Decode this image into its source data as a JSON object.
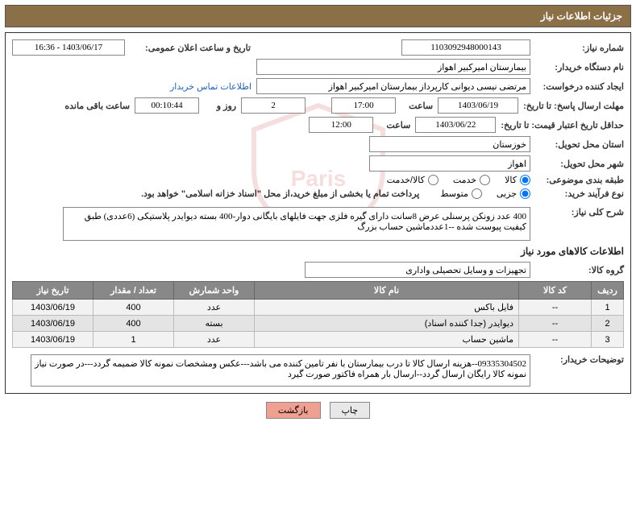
{
  "header": {
    "title": "جزئیات اطلاعات نیاز"
  },
  "fields": {
    "need_number_label": "شماره نیاز:",
    "need_number": "1103092948000143",
    "announce_label": "تاریخ و ساعت اعلان عمومی:",
    "announce_val": "1403/06/17 - 16:36",
    "buyer_org_label": "نام دستگاه خریدار:",
    "buyer_org": "بیمارستان امیرکبیر اهواز",
    "requester_label": "ایجاد کننده درخواست:",
    "requester": "مرتضی نیسی دیوانی کارپرداز بیمارستان امیرکبیر اهواز",
    "contact_link": "اطلاعات تماس خریدار",
    "reply_deadline_label": "مهلت ارسال پاسخ: تا تاریخ:",
    "reply_date": "1403/06/19",
    "time_label": "ساعت",
    "reply_time": "17:00",
    "remain_days": "2",
    "remain_days_label": "روز و",
    "remain_time": "00:10:44",
    "remain_suffix": "ساعت باقی مانده",
    "price_valid_label": "حداقل تاریخ اعتبار قیمت: تا تاریخ:",
    "price_valid_date": "1403/06/22",
    "price_valid_time": "12:00",
    "province_label": "استان محل تحویل:",
    "province": "خوزستان",
    "city_label": "شهر محل تحویل:",
    "city": "اهواز",
    "category_label": "طبقه بندی موضوعی:",
    "cat1": "کالا",
    "cat2": "خدمت",
    "cat3": "کالا/خدمت",
    "purchase_type_label": "نوع فرآیند خرید:",
    "pt1": "جزیی",
    "pt2": "متوسط",
    "pt_note": "پرداخت تمام یا بخشی از مبلغ خرید،از محل \"اسناد خزانه اسلامی\" خواهد بود.",
    "summary_label": "شرح کلی نیاز:",
    "summary_text": "400 عدد زونکن پرسنلی عرض 8سانت دارای گیره فلزی جهت فایلهای بایگانی دوار-400 بسته دیوایدر پلاستیکی (6عددی) طبق کیفیت پیوست شده --1عددماشین حساب بزرگ",
    "items_title": "اطلاعات کالاهای مورد نیاز",
    "group_label": "گروه کالا:",
    "group_val": "تجهیزات و وسایل تحصیلی واداری",
    "buyer_notes_label": "توضیحات خریدار:",
    "buyer_notes": "09335304502--هزینه ارسال کالا تا درب بیمارستان با نفر تامین کننده می باشد---عکس ومشخصات نمونه کالا ضمیمه گردد---در صورت نیاز نمونه کالا رایگان ارسال گردد--ارسال بار همراه فاکتور صورت گیرد"
  },
  "table": {
    "headers": [
      "ردیف",
      "کد کالا",
      "نام کالا",
      "واحد شمارش",
      "تعداد / مقدار",
      "تاریخ نیاز"
    ],
    "rows": [
      [
        "1",
        "--",
        "فایل باکس",
        "عدد",
        "400",
        "1403/06/19"
      ],
      [
        "2",
        "--",
        "دیوایدر (جدا کننده اسناد)",
        "بسته",
        "400",
        "1403/06/19"
      ],
      [
        "3",
        "--",
        "ماشین حساب",
        "عدد",
        "1",
        "1403/06/19"
      ]
    ]
  },
  "buttons": {
    "print": "چاپ",
    "back": "بازگشت"
  },
  "colors": {
    "header_bg": "#8b6f47",
    "th_bg": "#888888"
  }
}
